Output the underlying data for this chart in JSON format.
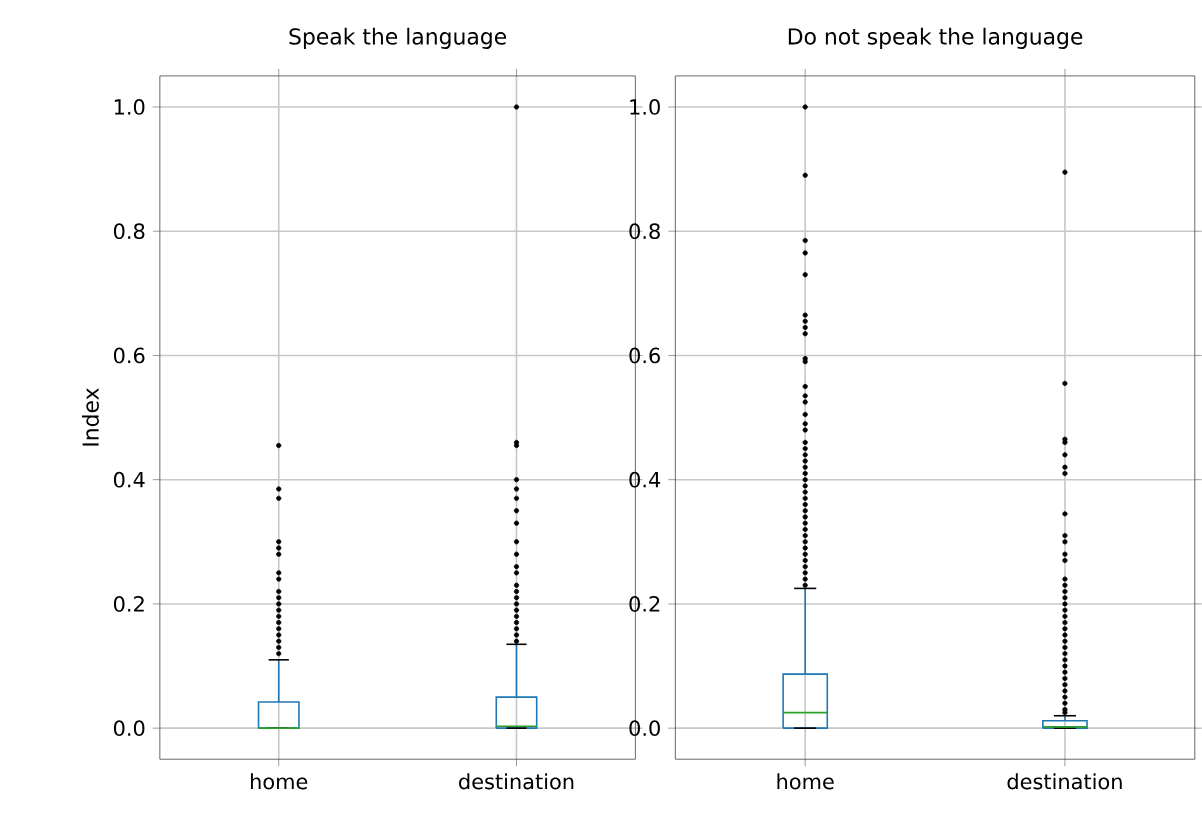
{
  "chart_data": [
    {
      "type": "box",
      "title": "Speak the language",
      "ylabel": "Index",
      "categories": [
        "home",
        "destination"
      ],
      "boxes": [
        {
          "low": 0,
          "q1": 0,
          "median": 0,
          "q3": 0.042,
          "high": 0.11,
          "outliers": [
            0.12,
            0.13,
            0.14,
            0.15,
            0.16,
            0.17,
            0.18,
            0.19,
            0.2,
            0.21,
            0.22,
            0.24,
            0.25,
            0.28,
            0.29,
            0.3,
            0.37,
            0.385,
            0.455
          ]
        },
        {
          "low": 0,
          "q1": 0,
          "median": 0.003,
          "q3": 0.05,
          "high": 0.135,
          "outliers": [
            0.14,
            0.15,
            0.16,
            0.17,
            0.18,
            0.19,
            0.2,
            0.21,
            0.22,
            0.23,
            0.25,
            0.26,
            0.28,
            0.3,
            0.33,
            0.35,
            0.37,
            0.385,
            0.4,
            0.455,
            0.46,
            1.0
          ]
        }
      ],
      "color": "#1f77b4",
      "ylim": [
        -0.05,
        1.05
      ],
      "yticks": [
        {
          "value": 0,
          "label": "0.0"
        },
        {
          "value": 0.2,
          "label": "0.2"
        },
        {
          "value": 0.4,
          "label": "0.4"
        },
        {
          "value": 0.6,
          "label": "0.6"
        },
        {
          "value": 0.8,
          "label": "0.8"
        },
        {
          "value": 1.0,
          "label": "1.0"
        }
      ],
      "grid": true
    },
    {
      "type": "box",
      "title": "Do not speak the language",
      "categories": [
        "home",
        "destination"
      ],
      "boxes": [
        {
          "low": 0,
          "q1": 0,
          "median": 0.025,
          "q3": 0.087,
          "high": 0.225,
          "outliers": [
            0.23,
            0.24,
            0.25,
            0.26,
            0.27,
            0.28,
            0.29,
            0.3,
            0.31,
            0.32,
            0.33,
            0.34,
            0.35,
            0.36,
            0.37,
            0.38,
            0.39,
            0.4,
            0.41,
            0.42,
            0.43,
            0.44,
            0.45,
            0.46,
            0.48,
            0.49,
            0.505,
            0.525,
            0.535,
            0.55,
            0.59,
            0.595,
            0.635,
            0.645,
            0.655,
            0.665,
            0.73,
            0.765,
            0.785,
            0.89,
            1.0
          ]
        },
        {
          "low": 0,
          "q1": 0,
          "median": 0.002,
          "q3": 0.012,
          "high": 0.02,
          "outliers": [
            0.025,
            0.03,
            0.04,
            0.05,
            0.06,
            0.07,
            0.08,
            0.09,
            0.1,
            0.11,
            0.12,
            0.13,
            0.14,
            0.15,
            0.16,
            0.17,
            0.18,
            0.19,
            0.2,
            0.21,
            0.22,
            0.23,
            0.24,
            0.27,
            0.28,
            0.3,
            0.31,
            0.345,
            0.41,
            0.42,
            0.44,
            0.46,
            0.465,
            0.555,
            0.895
          ]
        }
      ],
      "color": "#1f77b4",
      "ylim": [
        -0.05,
        1.05
      ],
      "yticks": [
        {
          "value": 0,
          "label": "0.0"
        },
        {
          "value": 0.2,
          "label": "0.2"
        },
        {
          "value": 0.4,
          "label": "0.4"
        },
        {
          "value": 0.6,
          "label": "0.6"
        },
        {
          "value": 0.8,
          "label": "0.8"
        },
        {
          "value": 1.0,
          "label": "1.0"
        }
      ],
      "grid": true
    }
  ]
}
